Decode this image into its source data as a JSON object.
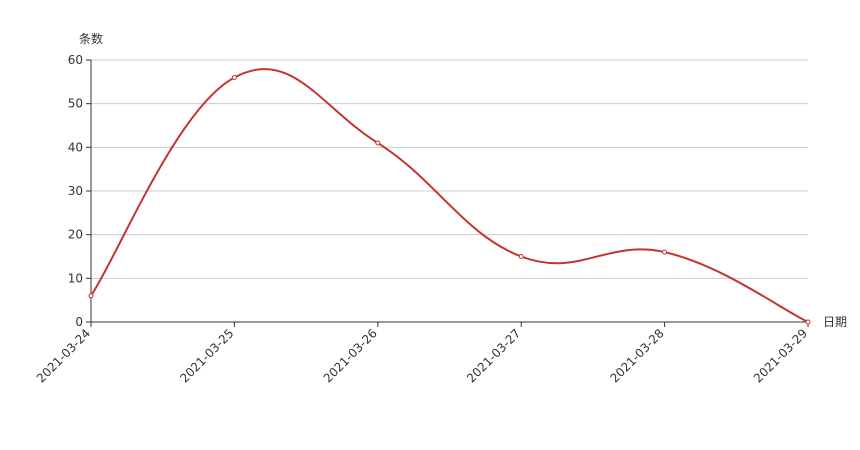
{
  "chart_data": {
    "type": "line",
    "y_axis_label": "条数",
    "x_axis_label": "日期",
    "categories": [
      "2021-03-24",
      "2021-03-25",
      "2021-03-26",
      "2021-03-27",
      "2021-03-28",
      "2021-03-29"
    ],
    "series": [
      {
        "color": "#c23531",
        "values": [
          6,
          56,
          41,
          15,
          16,
          0
        ]
      }
    ],
    "smooth": true,
    "ylim": [
      0,
      60
    ],
    "yticks": [
      0,
      10,
      20,
      30,
      40,
      50,
      60
    ],
    "grid": true
  }
}
